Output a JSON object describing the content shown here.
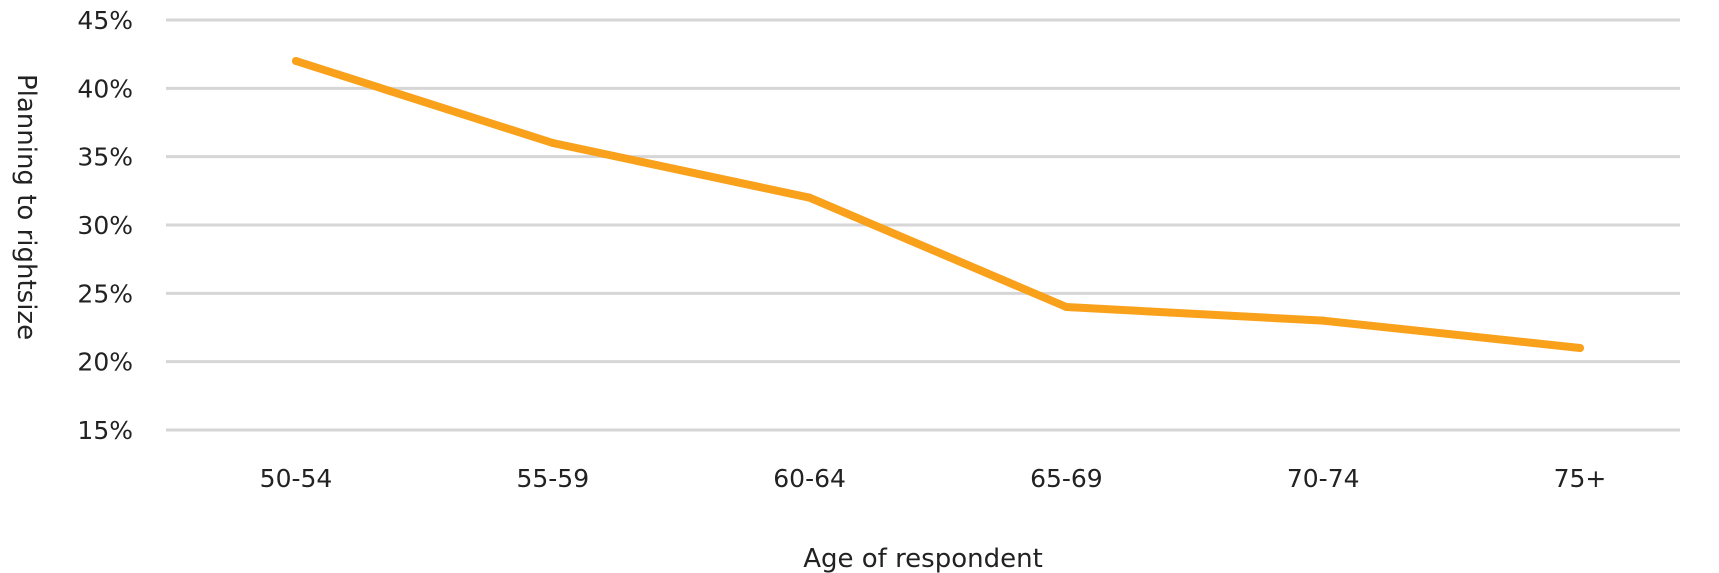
{
  "chart_data": {
    "type": "line",
    "title": "",
    "xlabel": "Age of respondent",
    "ylabel": "Planning to rightsize",
    "categories": [
      "50-54",
      "55-59",
      "60-64",
      "65-69",
      "70-74",
      "75+"
    ],
    "series": [
      {
        "values": [
          42,
          36,
          32,
          24,
          23,
          21
        ],
        "color": "#f9a11b"
      }
    ],
    "ylim": [
      15,
      45
    ],
    "yticks": [
      15,
      20,
      25,
      30,
      35,
      40,
      45
    ],
    "ytick_labels": [
      "15%",
      "20%",
      "25%",
      "30%",
      "35%",
      "40%",
      "45%"
    ],
    "grid": true,
    "legend": "none"
  }
}
